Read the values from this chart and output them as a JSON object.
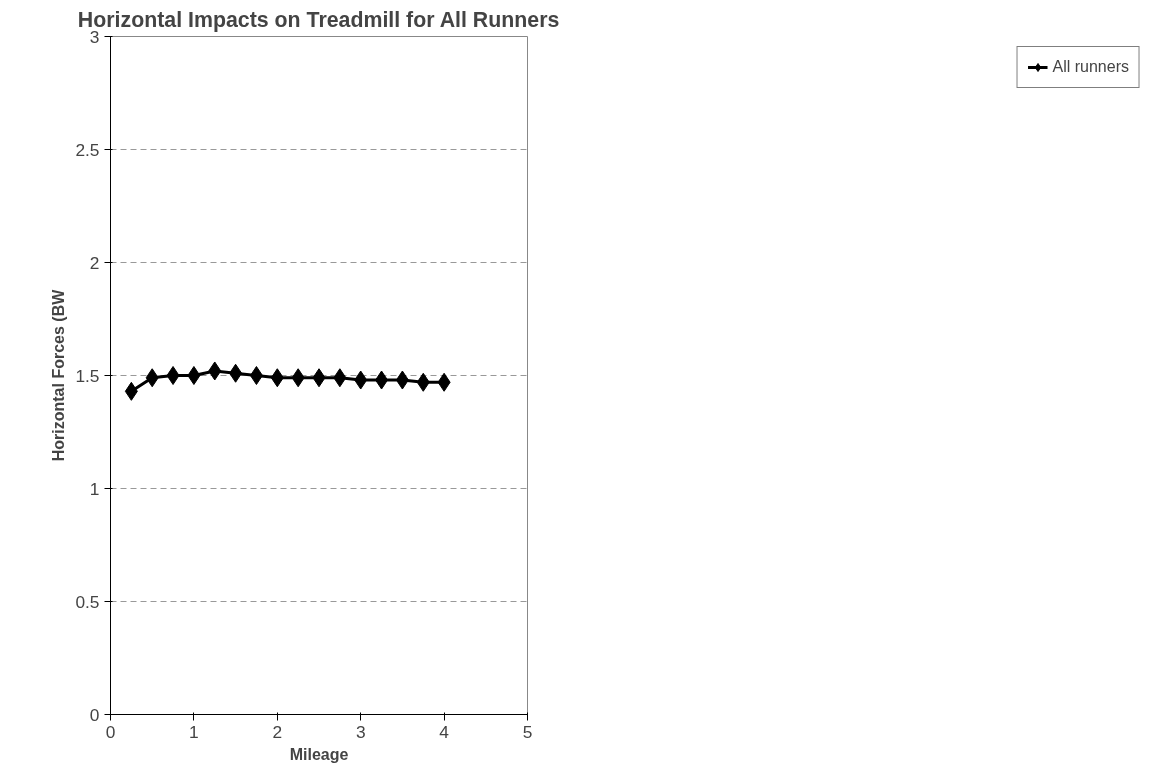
{
  "chart_data": {
    "type": "line",
    "title": "Horizontal Impacts on Treadmill for All Runners",
    "xlabel": "Mileage",
    "ylabel": "Horizontal Forces (BW",
    "x": [
      0.25,
      0.5,
      0.75,
      1,
      1.25,
      1.5,
      1.75,
      2,
      2.25,
      2.5,
      2.75,
      3,
      3.25,
      3.5,
      3.75,
      4
    ],
    "series": [
      {
        "name": "All runners",
        "color": "#000000",
        "values": [
          1.43,
          1.49,
          1.5,
          1.5,
          1.52,
          1.51,
          1.5,
          1.49,
          1.49,
          1.49,
          1.49,
          1.48,
          1.48,
          1.48,
          1.47,
          1.47
        ]
      }
    ],
    "xlim": [
      0,
      5
    ],
    "xticks": [
      0,
      1,
      2,
      3,
      4,
      5
    ],
    "ylim": [
      0,
      3
    ],
    "yticks": [
      0,
      0.5,
      1,
      1.5,
      2,
      2.5,
      3
    ],
    "grid": "y",
    "legend": "right",
    "marker": "diamond",
    "line_style": "solid"
  }
}
